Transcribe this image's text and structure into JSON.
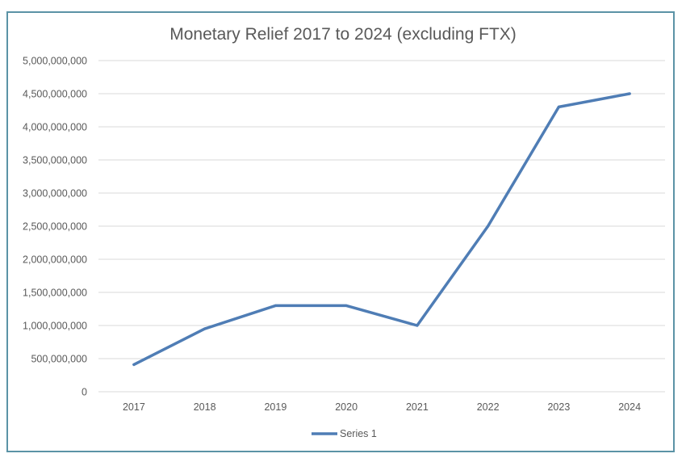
{
  "chart_data": {
    "type": "line",
    "title": "Monetary Relief 2017 to 2024 (excluding FTX)",
    "xlabel": "",
    "ylabel": "",
    "categories": [
      "2017",
      "2018",
      "2019",
      "2020",
      "2021",
      "2022",
      "2023",
      "2024"
    ],
    "series": [
      {
        "name": "Series 1",
        "values": [
          410000000,
          950000000,
          1300000000,
          1300000000,
          1000000000,
          2500000000,
          4300000000,
          4500000000
        ]
      }
    ],
    "ylim": [
      0,
      5000000000
    ],
    "yticks": [
      0,
      500000000,
      1000000000,
      1500000000,
      2000000000,
      2500000000,
      3000000000,
      3500000000,
      4000000000,
      4500000000,
      5000000000
    ],
    "ytick_labels": [
      "0",
      "500,000,000",
      "1,000,000,000",
      "1,500,000,000",
      "2,000,000,000",
      "2,500,000,000",
      "3,000,000,000",
      "3,500,000,000",
      "4,000,000,000",
      "4,500,000,000",
      "5,000,000,000"
    ],
    "grid": true,
    "legend": "bottom-center",
    "line_color": "#4f7db5",
    "grid_color": "#d9d9d9",
    "border_color": "#5b93a6"
  }
}
